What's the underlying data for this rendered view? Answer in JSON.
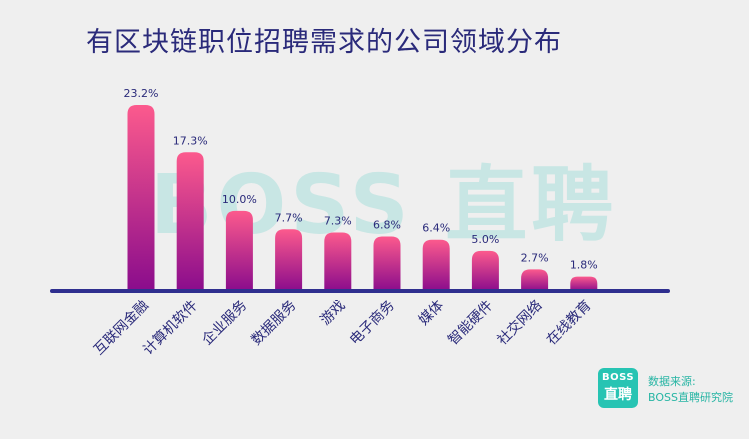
{
  "header": {
    "title": "有区块链职位招聘需求的公司领域分布"
  },
  "watermark": {
    "text": "BOSS 直聘"
  },
  "logo": {
    "line1": "BOSS",
    "line2": "直聘"
  },
  "source": {
    "label": "数据来源:",
    "value": "BOSS直聘研究院"
  },
  "colors": {
    "bar_top": "#fc5a8d",
    "bar_bottom": "#8a0c8c",
    "axis": "#2f2f8f",
    "text": "#2a2a7a"
  },
  "chart_data": {
    "type": "bar",
    "title": "有区块链职位招聘需求的公司领域分布",
    "categories": [
      "互联网金融",
      "计算机软件",
      "企业服务",
      "数据服务",
      "游戏",
      "电子商务",
      "媒体",
      "智能硬件",
      "社交网络",
      "在线教育"
    ],
    "values": [
      23.2,
      17.3,
      10.0,
      7.7,
      7.3,
      6.8,
      6.4,
      5.0,
      2.7,
      1.8
    ],
    "value_labels": [
      "23.2%",
      "17.3%",
      "10.0%",
      "7.7%",
      "7.3%",
      "6.8%",
      "6.4%",
      "5.0%",
      "2.7%",
      "1.8%"
    ],
    "unit": "%",
    "grid": false,
    "ylim": [
      0,
      23.2
    ]
  }
}
